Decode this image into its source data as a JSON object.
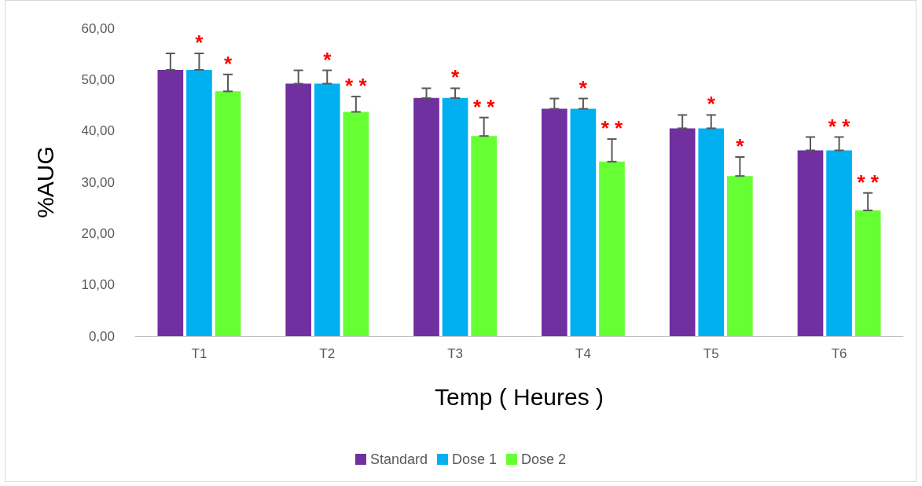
{
  "chart_data": {
    "type": "bar",
    "xlabel": "Temp ( Heures )",
    "ylabel": "%AUG",
    "categories": [
      "T1",
      "T2",
      "T3",
      "T4",
      "T5",
      "T6"
    ],
    "series": [
      {
        "name": "Standard",
        "color": "#7030a0",
        "values": [
          51.9,
          49.2,
          46.4,
          44.3,
          40.5,
          36.2
        ],
        "errors": [
          [
            51.9,
            55.1
          ],
          [
            49.2,
            51.8
          ],
          [
            46.4,
            48.3
          ],
          [
            44.3,
            46.3
          ],
          [
            40.5,
            43.1
          ],
          [
            36.2,
            38.8
          ]
        ]
      },
      {
        "name": "Dose 1",
        "color": "#00b0f0",
        "values": [
          51.9,
          49.2,
          46.4,
          44.3,
          40.5,
          36.2
        ],
        "errors": [
          [
            51.9,
            55.1
          ],
          [
            49.2,
            51.8
          ],
          [
            46.4,
            48.3
          ],
          [
            44.3,
            46.3
          ],
          [
            40.5,
            43.1
          ],
          [
            36.2,
            38.8
          ]
        ]
      },
      {
        "name": "Dose 2",
        "color": "#66ff33",
        "values": [
          47.7,
          43.7,
          39.0,
          34.0,
          31.2,
          24.5
        ],
        "errors": [
          [
            47.7,
            51.0
          ],
          [
            43.7,
            46.7
          ],
          [
            39.0,
            42.6
          ],
          [
            34.0,
            38.4
          ],
          [
            31.2,
            34.9
          ],
          [
            24.5,
            27.9
          ]
        ]
      }
    ],
    "ylim": [
      0,
      60
    ],
    "yticks": [
      {
        "value": 0,
        "label": "0,00"
      },
      {
        "value": 10,
        "label": "10,00"
      },
      {
        "value": 20,
        "label": "20,00"
      },
      {
        "value": 30,
        "label": "30,00"
      },
      {
        "value": 40,
        "label": "40,00"
      },
      {
        "value": 50,
        "label": "50,00"
      },
      {
        "value": 60,
        "label": "60,00"
      }
    ],
    "grid": false,
    "legend": "bottom",
    "annotations": [
      {
        "text": "*",
        "x": "T1",
        "y": 51.9
      },
      "*",
      {
        "text": "*",
        "x": "T2",
        "y": 49.2
      },
      "* *",
      {
        "text": "*",
        "x": "T3",
        "y": 46.4
      },
      "* *",
      {
        "text": "*",
        "x": "T4",
        "y": 44.3
      },
      "* *",
      {
        "text": "*",
        "x": "T5",
        "y": 40.5
      },
      "*",
      {
        "text": "* *",
        "x": "T6",
        "y": 36.2
      },
      "* *"
    ]
  }
}
